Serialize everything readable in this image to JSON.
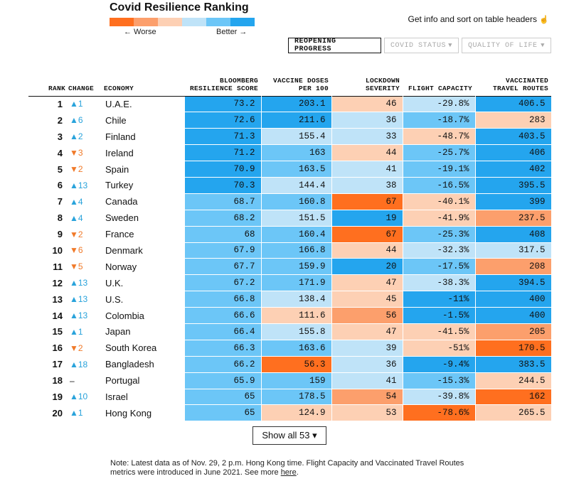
{
  "header": {
    "title": "Covid Resilience Ranking",
    "legend_worse": "← Worse",
    "legend_better": "Better →",
    "legend_colors": [
      "#ff6f1f",
      "#fc9f6c",
      "#fdd0b4",
      "#bfe3f8",
      "#6cc6f7",
      "#24a5ee"
    ],
    "info_text": "Get info and sort on table headers",
    "info_icon": "pointer-hand-icon"
  },
  "tabs": [
    {
      "label": "REOPENING PROGRESS",
      "active": true
    },
    {
      "label": "COVID STATUS",
      "active": false
    },
    {
      "label": "QUALITY OF LIFE",
      "active": false
    }
  ],
  "columns": {
    "rank": "RANK",
    "change": "CHANGE",
    "economy": "ECONOMY",
    "score": "BLOOMBERG RESILIENCE SCORE",
    "vaccine": "VACCINE DOSES PER 100",
    "lockdown": "LOCKDOWN SEVERITY",
    "flight": "FLIGHT CAPACITY",
    "travel": "VACCINATED TRAVEL ROUTES"
  },
  "rows": [
    {
      "rank": "1",
      "change": "▲1",
      "dir": "up",
      "economy": "U.A.E.",
      "score": "73.2",
      "vaccine": "203.1",
      "lockdown": "46",
      "flight": "-29.8%",
      "travel": "406.5"
    },
    {
      "rank": "2",
      "change": "▲6",
      "dir": "up",
      "economy": "Chile",
      "score": "72.6",
      "vaccine": "211.6",
      "lockdown": "36",
      "flight": "-18.7%",
      "travel": "283"
    },
    {
      "rank": "3",
      "change": "▲2",
      "dir": "up",
      "economy": "Finland",
      "score": "71.3",
      "vaccine": "155.4",
      "lockdown": "33",
      "flight": "-48.7%",
      "travel": "403.5"
    },
    {
      "rank": "4",
      "change": "▼3",
      "dir": "down",
      "economy": "Ireland",
      "score": "71.2",
      "vaccine": "163",
      "lockdown": "44",
      "flight": "-25.7%",
      "travel": "406"
    },
    {
      "rank": "5",
      "change": "▼2",
      "dir": "down",
      "economy": "Spain",
      "score": "70.9",
      "vaccine": "163.5",
      "lockdown": "41",
      "flight": "-19.1%",
      "travel": "402"
    },
    {
      "rank": "6",
      "change": "▲13",
      "dir": "up",
      "economy": "Turkey",
      "score": "70.3",
      "vaccine": "144.4",
      "lockdown": "38",
      "flight": "-16.5%",
      "travel": "395.5"
    },
    {
      "rank": "7",
      "change": "▲4",
      "dir": "up",
      "economy": "Canada",
      "score": "68.7",
      "vaccine": "160.8",
      "lockdown": "67",
      "flight": "-40.1%",
      "travel": "399"
    },
    {
      "rank": "8",
      "change": "▲4",
      "dir": "up",
      "economy": "Sweden",
      "score": "68.2",
      "vaccine": "151.5",
      "lockdown": "19",
      "flight": "-41.9%",
      "travel": "237.5"
    },
    {
      "rank": "9",
      "change": "▼2",
      "dir": "down",
      "economy": "France",
      "score": "68",
      "vaccine": "160.4",
      "lockdown": "67",
      "flight": "-25.3%",
      "travel": "408"
    },
    {
      "rank": "10",
      "change": "▼6",
      "dir": "down",
      "economy": "Denmark",
      "score": "67.9",
      "vaccine": "166.8",
      "lockdown": "44",
      "flight": "-32.3%",
      "travel": "317.5"
    },
    {
      "rank": "11",
      "change": "▼5",
      "dir": "down",
      "economy": "Norway",
      "score": "67.7",
      "vaccine": "159.9",
      "lockdown": "20",
      "flight": "-17.5%",
      "travel": "208"
    },
    {
      "rank": "12",
      "change": "▲13",
      "dir": "up",
      "economy": "U.K.",
      "score": "67.2",
      "vaccine": "171.9",
      "lockdown": "47",
      "flight": "-38.3%",
      "travel": "394.5"
    },
    {
      "rank": "13",
      "change": "▲13",
      "dir": "up",
      "economy": "U.S.",
      "score": "66.8",
      "vaccine": "138.4",
      "lockdown": "45",
      "flight": "-11%",
      "travel": "400"
    },
    {
      "rank": "14",
      "change": "▲13",
      "dir": "up",
      "economy": "Colombia",
      "score": "66.6",
      "vaccine": "111.6",
      "lockdown": "56",
      "flight": "-1.5%",
      "travel": "400"
    },
    {
      "rank": "15",
      "change": "▲1",
      "dir": "up",
      "economy": "Japan",
      "score": "66.4",
      "vaccine": "155.8",
      "lockdown": "47",
      "flight": "-41.5%",
      "travel": "205"
    },
    {
      "rank": "16",
      "change": "▼2",
      "dir": "down",
      "economy": "South Korea",
      "score": "66.3",
      "vaccine": "163.6",
      "lockdown": "39",
      "flight": "-51%",
      "travel": "170.5"
    },
    {
      "rank": "17",
      "change": "▲18",
      "dir": "up",
      "economy": "Bangladesh",
      "score": "66.2",
      "vaccine": "56.3",
      "lockdown": "36",
      "flight": "-9.4%",
      "travel": "383.5"
    },
    {
      "rank": "18",
      "change": "–",
      "dir": "none",
      "economy": "Portugal",
      "score": "65.9",
      "vaccine": "159",
      "lockdown": "41",
      "flight": "-15.3%",
      "travel": "244.5"
    },
    {
      "rank": "19",
      "change": "▲10",
      "dir": "up",
      "economy": "Israel",
      "score": "65",
      "vaccine": "178.5",
      "lockdown": "54",
      "flight": "-39.8%",
      "travel": "162"
    },
    {
      "rank": "20",
      "change": "▲1",
      "dir": "up",
      "economy": "Hong Kong",
      "score": "65",
      "vaccine": "124.9",
      "lockdown": "53",
      "flight": "-78.6%",
      "travel": "265.5"
    }
  ],
  "show_all_label": "Show all 53 ▾",
  "note": {
    "text": "Note: Latest data as of Nov. 29, 2 p.m. Hong Kong time. Flight Capacity and Vaccinated Travel Routes metrics were introduced in June 2021. See more",
    "link": "here",
    "end": "."
  }
}
